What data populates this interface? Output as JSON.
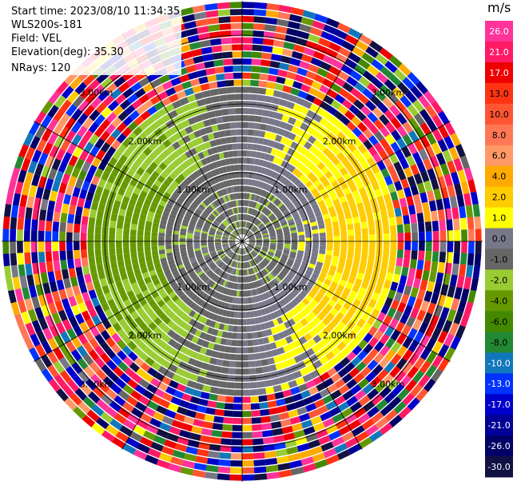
{
  "header": {
    "start_time": "Start time: 2023/08/10 11:34:35",
    "instrument": "WLS200s-181",
    "field": "Field: VEL",
    "elevation": "Elevation(deg): 35.30",
    "nrays": "NRays: 120"
  },
  "chart_data": {
    "type": "heatmap",
    "projection": "polar-ppi",
    "field": "VEL",
    "units": "m/s",
    "n_rays": 120,
    "elevation_deg": 35.3,
    "max_range_km": 3.5,
    "range_rings_km": [
      1.0,
      2.0,
      3.0
    ],
    "ring_labels": [
      "1.00km",
      "2.00km",
      "3.00km"
    ],
    "spoke_angles_deg": [
      0,
      30,
      60,
      90,
      120,
      150,
      180,
      210,
      240,
      270,
      300,
      330
    ],
    "colorbar": {
      "unit_label": "m/s",
      "ticks": [
        "26.0",
        "21.0",
        "17.0",
        "13.0",
        "10.0",
        "8.0",
        "6.0",
        "4.0",
        "2.0",
        "1.0",
        "0.0",
        "-1.0",
        "-2.0",
        "-4.0",
        "-6.0",
        "-8.0",
        "-10.0",
        "-13.0",
        "-17.0",
        "-21.0",
        "-26.0",
        "-30.0"
      ],
      "bins": [
        {
          "min": 26,
          "max": 30,
          "color": "#ff3399"
        },
        {
          "min": 21,
          "max": 26,
          "color": "#ff1a66"
        },
        {
          "min": 17,
          "max": 21,
          "color": "#ee0000"
        },
        {
          "min": 13,
          "max": 17,
          "color": "#ff3311"
        },
        {
          "min": 10,
          "max": 13,
          "color": "#ff5533"
        },
        {
          "min": 8,
          "max": 10,
          "color": "#ff7755"
        },
        {
          "min": 6,
          "max": 8,
          "color": "#ff9966"
        },
        {
          "min": 4,
          "max": 6,
          "color": "#ffaa00"
        },
        {
          "min": 2,
          "max": 4,
          "color": "#ffcc00"
        },
        {
          "min": 1,
          "max": 2,
          "color": "#ffff00"
        },
        {
          "min": 0,
          "max": 1,
          "color": "#777788"
        },
        {
          "min": -1,
          "max": 0,
          "color": "#666666"
        },
        {
          "min": -2,
          "max": -1,
          "color": "#99cc33"
        },
        {
          "min": -4,
          "max": -2,
          "color": "#669900"
        },
        {
          "min": -6,
          "max": -4,
          "color": "#448800"
        },
        {
          "min": -8,
          "max": -6,
          "color": "#228833"
        },
        {
          "min": -10,
          "max": -8,
          "color": "#1177bb"
        },
        {
          "min": -13,
          "max": -10,
          "color": "#0033ff"
        },
        {
          "min": -17,
          "max": -13,
          "color": "#0000cc"
        },
        {
          "min": -21,
          "max": -17,
          "color": "#000099"
        },
        {
          "min": -26,
          "max": -21,
          "color": "#000066"
        },
        {
          "min": -30,
          "max": -26,
          "color": "#111144"
        }
      ]
    },
    "pattern": {
      "inner_radius_km": 0.85,
      "inner_value_mean": -0.5,
      "mid_radius_km": 2.25,
      "positive_sector_center_deg": 90,
      "negative_sector_center_deg": 270,
      "mid_amplitude": 2.5,
      "outer_note": "noise beyond ~2.3 km"
    }
  }
}
